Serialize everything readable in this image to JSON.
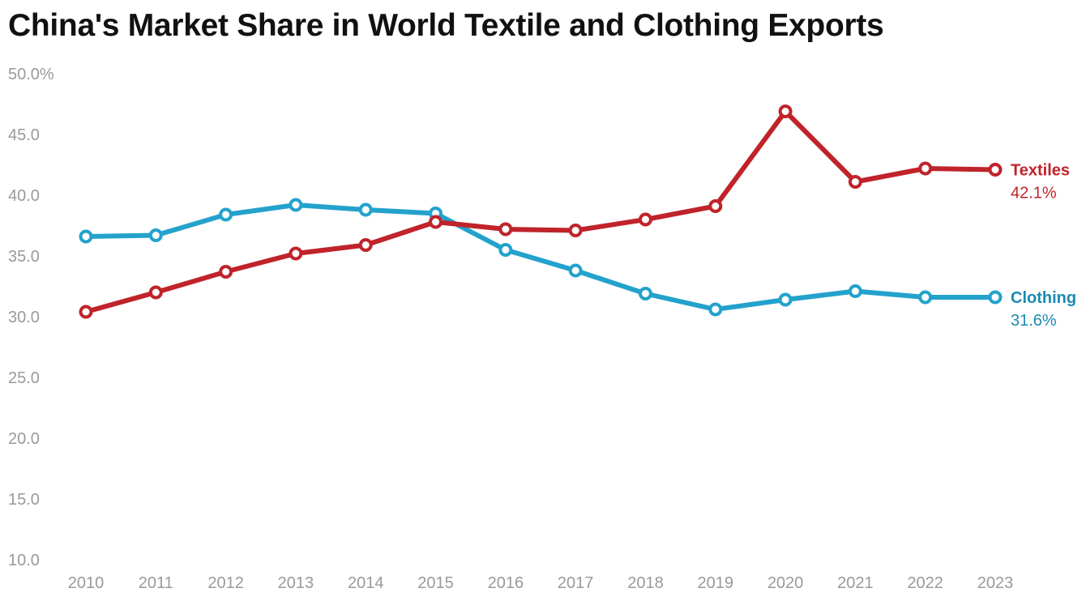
{
  "chart_data": {
    "type": "line",
    "title": "China's Market Share in World Textile and Clothing Exports",
    "xlabel": "",
    "ylabel": "",
    "x": [
      "2010",
      "2011",
      "2012",
      "2013",
      "2014",
      "2015",
      "2016",
      "2017",
      "2018",
      "2019",
      "2020",
      "2021",
      "2022",
      "2023"
    ],
    "ylim": [
      10,
      50
    ],
    "yticks": [
      10,
      15,
      20,
      25,
      30,
      35,
      40,
      45,
      50
    ],
    "ytick_labels": [
      "10.0",
      "15.0",
      "20.0",
      "25.0",
      "30.0",
      "35.0",
      "40.0",
      "45.0",
      "50.0%"
    ],
    "grid": false,
    "legend": "end-of-line labels",
    "series": [
      {
        "name": "Textiles",
        "end_label": "42.1%",
        "color": "#c0232a",
        "values": [
          30.4,
          32.0,
          33.7,
          35.2,
          35.9,
          37.8,
          37.2,
          37.1,
          38.0,
          39.1,
          46.9,
          41.1,
          42.2,
          42.1
        ]
      },
      {
        "name": "Clothing",
        "end_label": "31.6%",
        "color": "#23a2cc",
        "label_color": "#1a8bb0",
        "values": [
          36.6,
          36.7,
          38.4,
          39.2,
          38.8,
          38.5,
          35.5,
          33.8,
          31.9,
          30.6,
          31.4,
          32.1,
          31.6,
          31.6
        ]
      }
    ]
  }
}
